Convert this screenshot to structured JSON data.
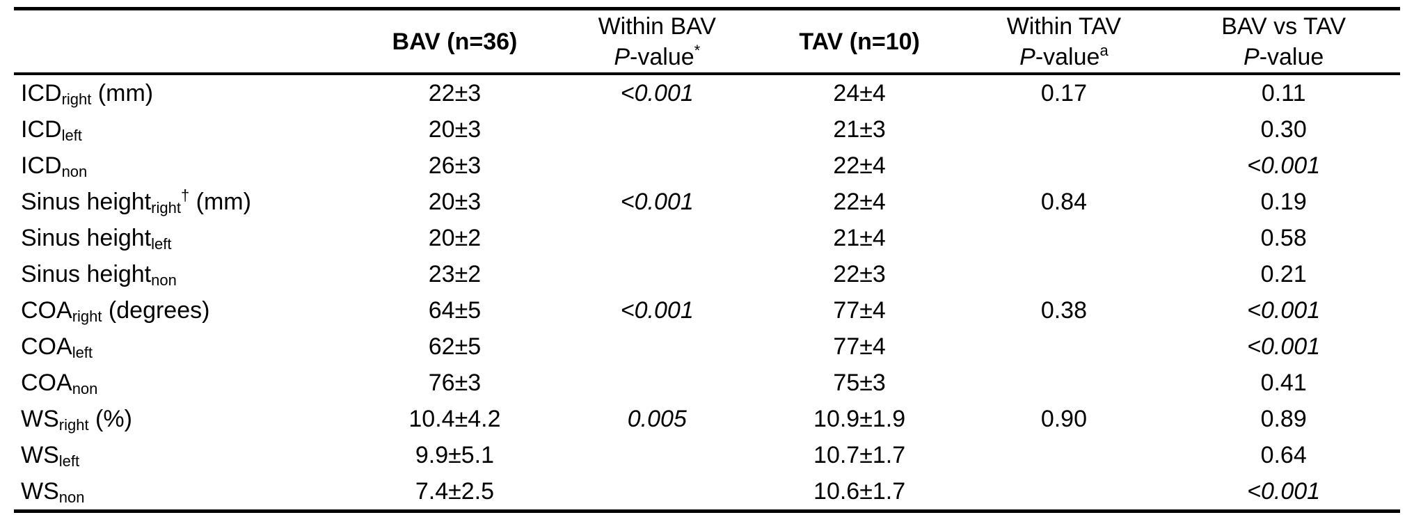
{
  "styles": {
    "background": "#ffffff",
    "text_color": "#000000",
    "rule_color": "#000000"
  },
  "table": {
    "headers": {
      "corner": "",
      "bav": {
        "line1": "BAV (n=36)"
      },
      "within_bav": {
        "line1": "Within BAV",
        "p": "P",
        "rest": "-value",
        "sup": "*"
      },
      "tav": {
        "line1": "TAV (n=10)"
      },
      "within_tav": {
        "line1": "Within TAV",
        "p": "P",
        "rest": "-value",
        "sup": "a"
      },
      "bav_vs_tav": {
        "line1": "BAV vs TAV",
        "p": "P",
        "rest": "-value",
        "sup": ""
      }
    },
    "rows": [
      {
        "label": {
          "base": "ICD",
          "sub": "right",
          "sup": "",
          "rest": " (mm)"
        },
        "bav": "22±3",
        "p_within_bav": {
          "text": "<0.001",
          "italic": true
        },
        "tav": "24±4",
        "p_within_tav": {
          "text": "0.17",
          "italic": false
        },
        "p_bav_vs_tav": {
          "text": "0.11",
          "italic": false
        }
      },
      {
        "label": {
          "base": "ICD",
          "sub": "left",
          "sup": "",
          "rest": ""
        },
        "bav": "20±3",
        "p_within_bav": {
          "text": "",
          "italic": false
        },
        "tav": "21±3",
        "p_within_tav": {
          "text": "",
          "italic": false
        },
        "p_bav_vs_tav": {
          "text": "0.30",
          "italic": false
        }
      },
      {
        "label": {
          "base": "ICD",
          "sub": "non",
          "sup": "",
          "rest": ""
        },
        "bav": "26±3",
        "p_within_bav": {
          "text": "",
          "italic": false
        },
        "tav": "22±4",
        "p_within_tav": {
          "text": "",
          "italic": false
        },
        "p_bav_vs_tav": {
          "text": "<0.001",
          "italic": true
        }
      },
      {
        "label": {
          "base": "Sinus height",
          "sub": "right",
          "sup": "†",
          "rest": " (mm)"
        },
        "bav": "20±3",
        "p_within_bav": {
          "text": "<0.001",
          "italic": true
        },
        "tav": "22±4",
        "p_within_tav": {
          "text": "0.84",
          "italic": false
        },
        "p_bav_vs_tav": {
          "text": "0.19",
          "italic": false
        }
      },
      {
        "label": {
          "base": "Sinus height",
          "sub": "left",
          "sup": "",
          "rest": ""
        },
        "bav": "20±2",
        "p_within_bav": {
          "text": "",
          "italic": false
        },
        "tav": "21±4",
        "p_within_tav": {
          "text": "",
          "italic": false
        },
        "p_bav_vs_tav": {
          "text": "0.58",
          "italic": false
        }
      },
      {
        "label": {
          "base": "Sinus height",
          "sub": "non",
          "sup": "",
          "rest": ""
        },
        "bav": "23±2",
        "p_within_bav": {
          "text": "",
          "italic": false
        },
        "tav": "22±3",
        "p_within_tav": {
          "text": "",
          "italic": false
        },
        "p_bav_vs_tav": {
          "text": "0.21",
          "italic": false
        }
      },
      {
        "label": {
          "base": "COA",
          "sub": "right",
          "sup": "",
          "rest": " (degrees)"
        },
        "bav": "64±5",
        "p_within_bav": {
          "text": "<0.001",
          "italic": true
        },
        "tav": "77±4",
        "p_within_tav": {
          "text": "0.38",
          "italic": false
        },
        "p_bav_vs_tav": {
          "text": "<0.001",
          "italic": true
        }
      },
      {
        "label": {
          "base": "COA",
          "sub": "left",
          "sup": "",
          "rest": ""
        },
        "bav": "62±5",
        "p_within_bav": {
          "text": "",
          "italic": false
        },
        "tav": "77±4",
        "p_within_tav": {
          "text": "",
          "italic": false
        },
        "p_bav_vs_tav": {
          "text": "<0.001",
          "italic": true
        }
      },
      {
        "label": {
          "base": "COA",
          "sub": "non",
          "sup": "",
          "rest": ""
        },
        "bav": "76±3",
        "p_within_bav": {
          "text": "",
          "italic": false
        },
        "tav": "75±3",
        "p_within_tav": {
          "text": "",
          "italic": false
        },
        "p_bav_vs_tav": {
          "text": "0.41",
          "italic": false
        }
      },
      {
        "label": {
          "base": "WS",
          "sub": "right",
          "sup": "",
          "rest": " (%)"
        },
        "bav": "10.4±4.2",
        "p_within_bav": {
          "text": "0.005",
          "italic": true
        },
        "tav": "10.9±1.9",
        "p_within_tav": {
          "text": "0.90",
          "italic": false
        },
        "p_bav_vs_tav": {
          "text": "0.89",
          "italic": false
        }
      },
      {
        "label": {
          "base": "WS",
          "sub": "left",
          "sup": "",
          "rest": ""
        },
        "bav": "9.9±5.1",
        "p_within_bav": {
          "text": "",
          "italic": false
        },
        "tav": "10.7±1.7",
        "p_within_tav": {
          "text": "",
          "italic": false
        },
        "p_bav_vs_tav": {
          "text": "0.64",
          "italic": false
        }
      },
      {
        "label": {
          "base": "WS",
          "sub": "non",
          "sup": "",
          "rest": ""
        },
        "bav": "7.4±2.5",
        "p_within_bav": {
          "text": "",
          "italic": false
        },
        "tav": "10.6±1.7",
        "p_within_tav": {
          "text": "",
          "italic": false
        },
        "p_bav_vs_tav": {
          "text": "<0.001",
          "italic": true
        }
      }
    ]
  }
}
